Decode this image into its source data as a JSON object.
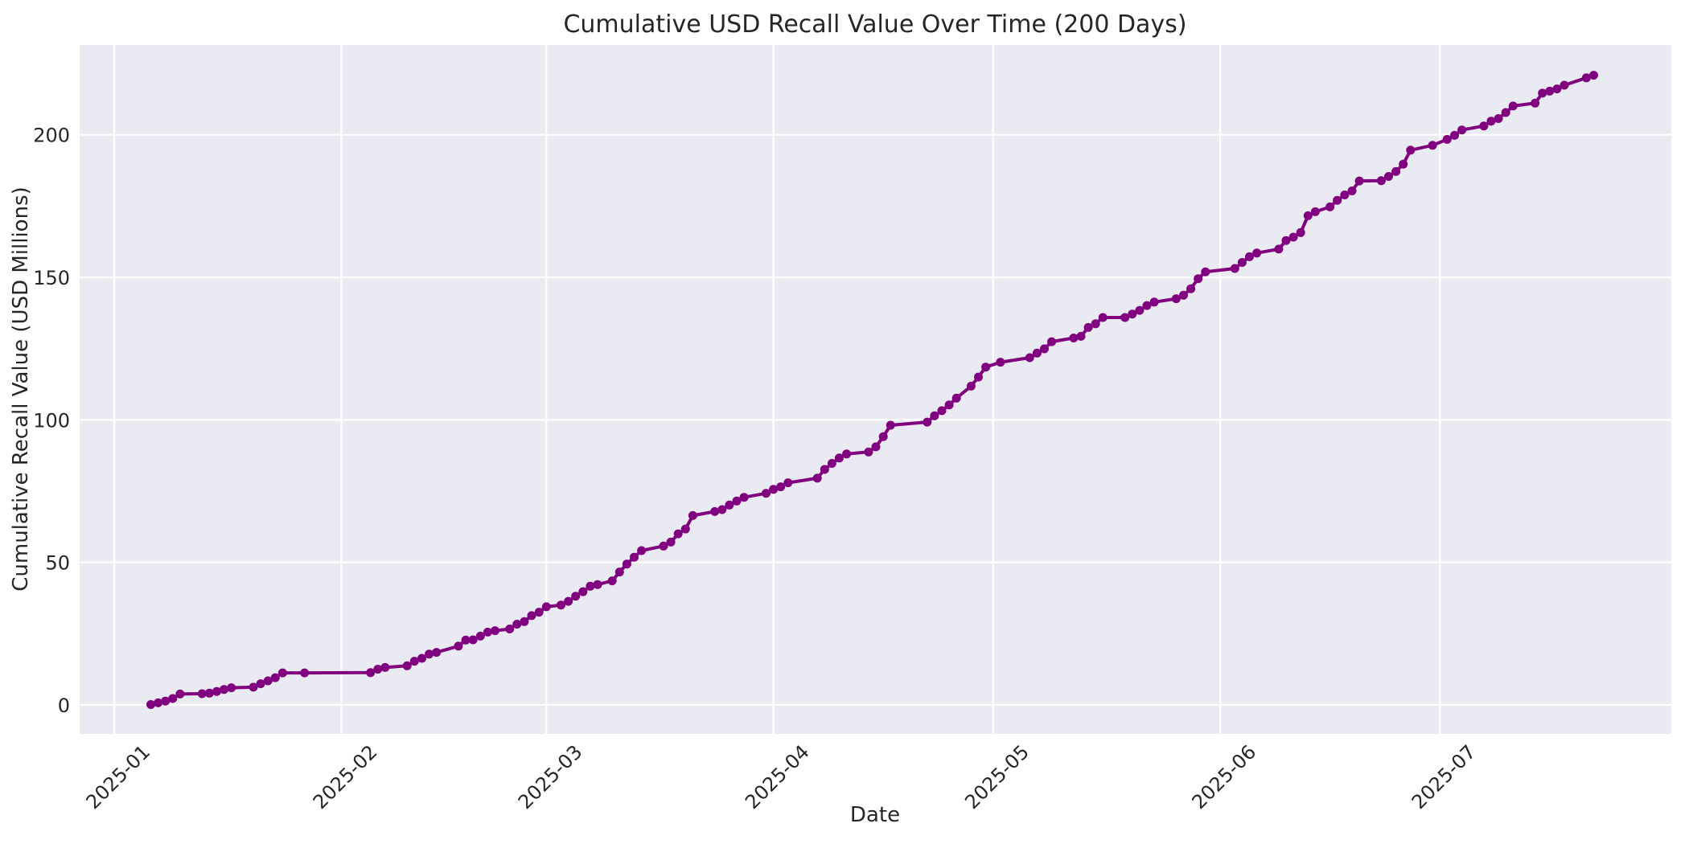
{
  "chart_data": {
    "type": "line",
    "title": "Cumulative USD Recall Value Over Time (200 Days)",
    "xlabel": "Date",
    "ylabel": "Cumulative Recall Value (USD Millions)",
    "legend": null,
    "grid": true,
    "plot_background": "#EAEAF2",
    "gridline_color": "#FFFFFF",
    "line_color": "#800080",
    "marker": "circle",
    "x_tick_labels": [
      "2025-01",
      "2025-02",
      "2025-03",
      "2025-04",
      "2025-05",
      "2025-06",
      "2025-07"
    ],
    "x_tick_dates": [
      "2025-01-01",
      "2025-02-01",
      "2025-03-01",
      "2025-04-01",
      "2025-05-01",
      "2025-06-01",
      "2025-07-01"
    ],
    "y_ticks": [
      0,
      50,
      100,
      150,
      200
    ],
    "xlim_days_from_2025_01_01": [
      -4.72,
      212.6
    ],
    "ylim": [
      -10.2,
      231.5
    ],
    "series": [
      {
        "name": "Cumulative USD Recall Value",
        "dates": [
          "2025-01-06",
          "2025-01-07",
          "2025-01-08",
          "2025-01-09",
          "2025-01-10",
          "2025-01-13",
          "2025-01-14",
          "2025-01-15",
          "2025-01-16",
          "2025-01-17",
          "2025-01-20",
          "2025-01-21",
          "2025-01-22",
          "2025-01-23",
          "2025-01-24",
          "2025-01-27",
          "2025-02-05",
          "2025-02-06",
          "2025-02-07",
          "2025-02-10",
          "2025-02-11",
          "2025-02-12",
          "2025-02-13",
          "2025-02-14",
          "2025-02-17",
          "2025-02-18",
          "2025-02-19",
          "2025-02-20",
          "2025-02-21",
          "2025-02-22",
          "2025-02-24",
          "2025-02-25",
          "2025-02-26",
          "2025-02-27",
          "2025-02-28",
          "2025-03-01",
          "2025-03-03",
          "2025-03-04",
          "2025-03-05",
          "2025-03-06",
          "2025-03-07",
          "2025-03-08",
          "2025-03-10",
          "2025-03-11",
          "2025-03-12",
          "2025-03-13",
          "2025-03-14",
          "2025-03-17",
          "2025-03-18",
          "2025-03-19",
          "2025-03-20",
          "2025-03-21",
          "2025-03-24",
          "2025-03-25",
          "2025-03-26",
          "2025-03-27",
          "2025-03-28",
          "2025-03-31",
          "2025-04-01",
          "2025-04-02",
          "2025-04-03",
          "2025-04-07",
          "2025-04-08",
          "2025-04-09",
          "2025-04-10",
          "2025-04-11",
          "2025-04-14",
          "2025-04-15",
          "2025-04-16",
          "2025-04-17",
          "2025-04-22",
          "2025-04-23",
          "2025-04-24",
          "2025-04-25",
          "2025-04-26",
          "2025-04-28",
          "2025-04-29",
          "2025-04-30",
          "2025-05-02",
          "2025-05-06",
          "2025-05-07",
          "2025-05-08",
          "2025-05-09",
          "2025-05-12",
          "2025-05-13",
          "2025-05-14",
          "2025-05-15",
          "2025-05-16",
          "2025-05-19",
          "2025-05-20",
          "2025-05-21",
          "2025-05-22",
          "2025-05-23",
          "2025-05-26",
          "2025-05-27",
          "2025-05-28",
          "2025-05-29",
          "2025-05-30",
          "2025-06-03",
          "2025-06-04",
          "2025-06-05",
          "2025-06-06",
          "2025-06-09",
          "2025-06-10",
          "2025-06-11",
          "2025-06-12",
          "2025-06-13",
          "2025-06-14",
          "2025-06-16",
          "2025-06-17",
          "2025-06-18",
          "2025-06-19",
          "2025-06-20",
          "2025-06-23",
          "2025-06-24",
          "2025-06-25",
          "2025-06-26",
          "2025-06-27",
          "2025-06-30",
          "2025-07-02",
          "2025-07-03",
          "2025-07-04",
          "2025-07-07",
          "2025-07-08",
          "2025-07-09",
          "2025-07-10",
          "2025-07-11",
          "2025-07-14",
          "2025-07-15",
          "2025-07-16",
          "2025-07-17",
          "2025-07-18",
          "2025-07-21",
          "2025-07-22"
        ],
        "values": [
          0.1,
          0.7,
          1.3,
          2.2,
          3.8,
          3.9,
          4.1,
          4.7,
          5.4,
          6.0,
          6.2,
          7.4,
          8.4,
          9.5,
          11.2,
          11.2,
          11.3,
          12.5,
          13.1,
          13.7,
          15.3,
          16.3,
          17.8,
          18.4,
          20.6,
          22.7,
          22.8,
          24.1,
          25.5,
          26.0,
          26.6,
          28.3,
          29.2,
          31.3,
          32.5,
          34.4,
          35.0,
          36.3,
          38.1,
          39.7,
          41.6,
          42.2,
          43.5,
          46.6,
          49.4,
          51.8,
          54.1,
          55.7,
          57.1,
          60.0,
          61.7,
          66.4,
          67.8,
          68.5,
          70.1,
          71.5,
          72.8,
          74.2,
          75.6,
          76.5,
          77.9,
          79.5,
          82.6,
          84.7,
          86.6,
          88.0,
          88.7,
          90.5,
          94.1,
          98.1,
          99.2,
          101.4,
          103.2,
          105.2,
          107.6,
          111.8,
          115.0,
          118.5,
          120.2,
          121.8,
          123.4,
          124.9,
          127.4,
          128.7,
          129.3,
          132.4,
          133.7,
          135.9,
          135.9,
          137.1,
          138.4,
          140.1,
          141.3,
          142.5,
          143.7,
          146.0,
          149.5,
          151.9,
          153.1,
          155.2,
          157.2,
          158.5,
          159.9,
          162.9,
          164.1,
          165.7,
          171.6,
          173.0,
          174.7,
          177.0,
          178.9,
          180.3,
          183.8,
          183.9,
          185.4,
          187.1,
          189.7,
          194.6,
          196.3,
          198.4,
          199.8,
          201.7,
          203.1,
          204.8,
          205.7,
          207.8,
          210.1,
          211.1,
          214.6,
          215.3,
          216.1,
          217.4,
          220.0,
          220.9
        ]
      }
    ]
  }
}
